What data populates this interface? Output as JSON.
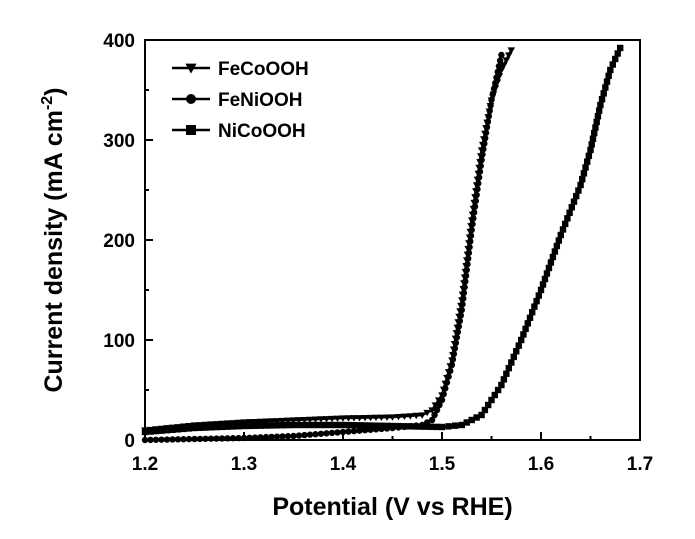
{
  "chart_data": {
    "type": "line",
    "xlabel": "Potential (V vs RHE)",
    "ylabel_main": "Current density (mA cm",
    "ylabel_sup": "-2",
    "ylabel_close": ")",
    "xlim": [
      1.2,
      1.7
    ],
    "ylim": [
      0,
      400
    ],
    "x_ticks": [
      "1.2",
      "1.3",
      "1.4",
      "1.5",
      "1.6",
      "1.7"
    ],
    "y_ticks": [
      "0",
      "100",
      "200",
      "300",
      "400"
    ],
    "legend_position": "top-left",
    "grid": false,
    "series": [
      {
        "name": "FeCoOOH",
        "marker": "triangle-down",
        "color": "#000000",
        "points": [
          [
            1.2,
            10
          ],
          [
            1.25,
            15
          ],
          [
            1.3,
            18
          ],
          [
            1.35,
            20
          ],
          [
            1.4,
            22
          ],
          [
            1.45,
            23
          ],
          [
            1.48,
            25
          ],
          [
            1.49,
            30
          ],
          [
            1.5,
            45
          ],
          [
            1.51,
            80
          ],
          [
            1.52,
            140
          ],
          [
            1.53,
            220
          ],
          [
            1.54,
            290
          ],
          [
            1.55,
            340
          ],
          [
            1.56,
            370
          ],
          [
            1.57,
            390
          ]
        ]
      },
      {
        "name": "FeNiOOH",
        "marker": "circle",
        "color": "#000000",
        "points": [
          [
            1.2,
            0
          ],
          [
            1.25,
            1
          ],
          [
            1.3,
            2
          ],
          [
            1.35,
            4
          ],
          [
            1.4,
            8
          ],
          [
            1.45,
            12
          ],
          [
            1.48,
            15
          ],
          [
            1.49,
            20
          ],
          [
            1.5,
            40
          ],
          [
            1.51,
            75
          ],
          [
            1.52,
            130
          ],
          [
            1.53,
            210
          ],
          [
            1.54,
            280
          ],
          [
            1.55,
            340
          ],
          [
            1.56,
            385
          ]
        ]
      },
      {
        "name": "NiCoOOH",
        "marker": "square",
        "color": "#000000",
        "points": [
          [
            1.2,
            8
          ],
          [
            1.25,
            12
          ],
          [
            1.3,
            14
          ],
          [
            1.35,
            15
          ],
          [
            1.4,
            15
          ],
          [
            1.45,
            14
          ],
          [
            1.5,
            13
          ],
          [
            1.52,
            15
          ],
          [
            1.54,
            25
          ],
          [
            1.56,
            55
          ],
          [
            1.58,
            100
          ],
          [
            1.6,
            150
          ],
          [
            1.62,
            205
          ],
          [
            1.64,
            255
          ],
          [
            1.65,
            290
          ],
          [
            1.66,
            335
          ],
          [
            1.67,
            370
          ],
          [
            1.68,
            392
          ]
        ]
      }
    ]
  }
}
